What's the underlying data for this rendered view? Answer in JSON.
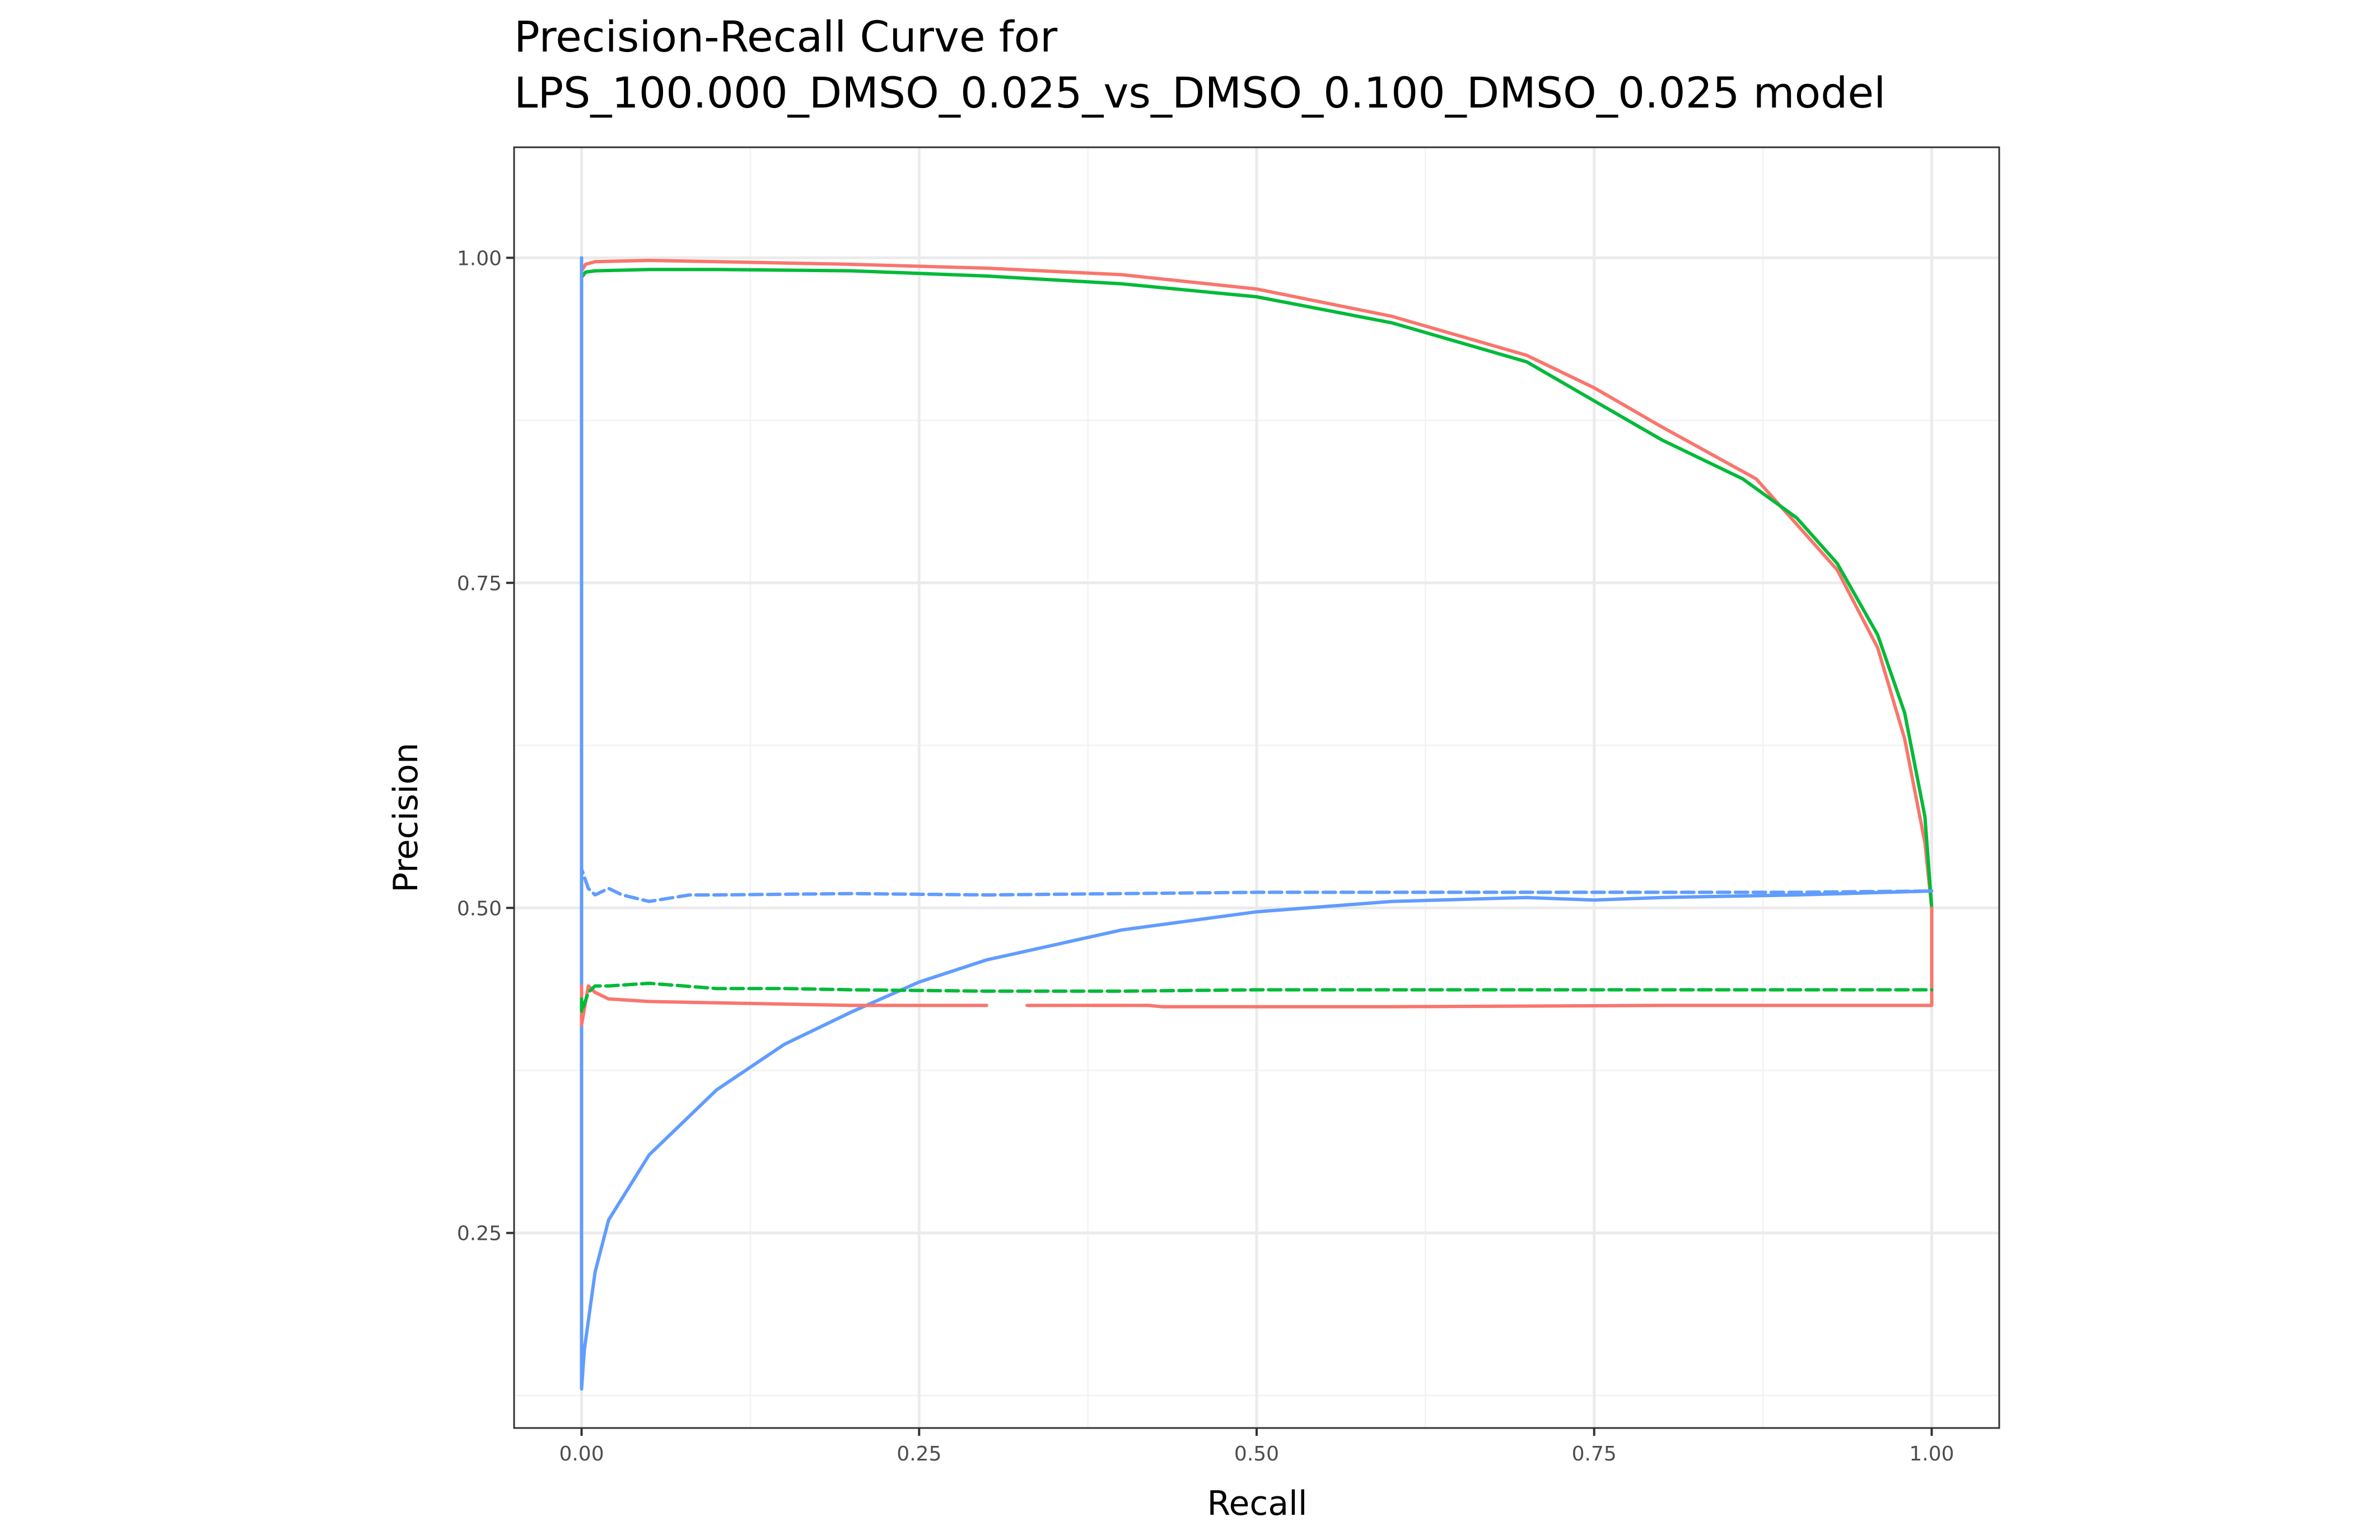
{
  "chart_data": {
    "type": "line",
    "title": "Precision-Recall Curve for\nLPS_100.000_DMSO_0.025_vs_DMSO_0.100_DMSO_0.025 model",
    "xlabel": "Recall",
    "ylabel": "Precision",
    "xlim": [
      -0.05,
      1.05
    ],
    "ylim": [
      0.1,
      1.085
    ],
    "x_ticks": [
      0.0,
      0.25,
      0.5,
      0.75,
      1.0
    ],
    "x_tick_labels": [
      "0.00",
      "0.25",
      "0.50",
      "0.75",
      "1.00"
    ],
    "y_ticks": [
      0.25,
      0.5,
      0.75,
      1.0
    ],
    "y_tick_labels": [
      "0.25",
      "0.50",
      "0.75",
      "1.00"
    ],
    "grid": true,
    "legend": "none",
    "series": [
      {
        "color": "#F8766D",
        "linetype": "solid",
        "x": [
          0.0,
          0.0,
          0.003,
          0.01,
          0.05,
          0.1,
          0.2,
          0.3,
          0.4,
          0.5,
          0.6,
          0.7,
          0.75,
          0.8,
          0.87,
          0.9,
          0.93,
          0.96,
          0.98,
          0.995,
          1.0
        ],
        "y": [
          0.96,
          0.99,
          0.995,
          0.997,
          0.998,
          0.997,
          0.995,
          0.992,
          0.987,
          0.976,
          0.955,
          0.925,
          0.9,
          0.87,
          0.83,
          0.795,
          0.76,
          0.7,
          0.63,
          0.55,
          0.5
        ]
      },
      {
        "color": "#00BA38",
        "linetype": "solid",
        "x": [
          0.0,
          0.0,
          0.003,
          0.01,
          0.05,
          0.1,
          0.2,
          0.3,
          0.4,
          0.5,
          0.6,
          0.7,
          0.75,
          0.8,
          0.86,
          0.9,
          0.93,
          0.96,
          0.98,
          0.995,
          1.0,
          1.0
        ],
        "y": [
          0.97,
          0.985,
          0.989,
          0.99,
          0.991,
          0.991,
          0.99,
          0.986,
          0.98,
          0.97,
          0.95,
          0.92,
          0.89,
          0.86,
          0.83,
          0.8,
          0.765,
          0.71,
          0.65,
          0.57,
          0.5,
          0.43
        ]
      },
      {
        "color": "#619CFF",
        "linetype": "solid",
        "x": [
          0.0,
          0.0,
          0.0,
          0.002,
          0.01,
          0.02,
          0.05,
          0.1,
          0.15,
          0.2,
          0.25,
          0.3,
          0.4,
          0.5,
          0.6,
          0.7,
          0.75,
          0.8,
          0.9,
          1.0
        ],
        "y": [
          1.0,
          0.5,
          0.13,
          0.16,
          0.22,
          0.26,
          0.31,
          0.36,
          0.395,
          0.42,
          0.443,
          0.46,
          0.483,
          0.497,
          0.505,
          0.508,
          0.506,
          0.508,
          0.51,
          0.513
        ]
      },
      {
        "color": "#F8766D",
        "linetype": "solid",
        "x": [
          0.0,
          0.0,
          0.005,
          0.01,
          0.02,
          0.05,
          0.1,
          0.2,
          0.3,
          0.31,
          0.33,
          0.35,
          0.42,
          0.43,
          0.6,
          0.8,
          1.0,
          1.0
        ],
        "y": [
          0.44,
          0.41,
          0.44,
          0.435,
          0.43,
          0.428,
          0.427,
          0.425,
          0.425,
          null,
          0.425,
          0.425,
          0.425,
          0.424,
          0.424,
          0.425,
          0.425,
          0.5
        ]
      },
      {
        "color": "#00BA38",
        "linetype": "dashed",
        "x": [
          0.0,
          0.0,
          0.005,
          0.01,
          0.02,
          0.05,
          0.1,
          0.15,
          0.2,
          0.3,
          0.4,
          0.5,
          0.6,
          0.8,
          1.0
        ],
        "y": [
          0.43,
          0.42,
          0.435,
          0.44,
          0.44,
          0.442,
          0.438,
          0.438,
          0.437,
          0.436,
          0.436,
          0.437,
          0.437,
          0.437,
          0.437
        ]
      },
      {
        "color": "#619CFF",
        "linetype": "dashed",
        "x": [
          0.0,
          0.0,
          0.005,
          0.01,
          0.02,
          0.03,
          0.05,
          0.08,
          0.1,
          0.2,
          0.3,
          0.5,
          0.7,
          0.9,
          1.0
        ],
        "y": [
          0.51,
          0.53,
          0.515,
          0.51,
          0.515,
          0.51,
          0.505,
          0.51,
          0.51,
          0.511,
          0.51,
          0.512,
          0.512,
          0.512,
          0.513
        ]
      }
    ]
  }
}
